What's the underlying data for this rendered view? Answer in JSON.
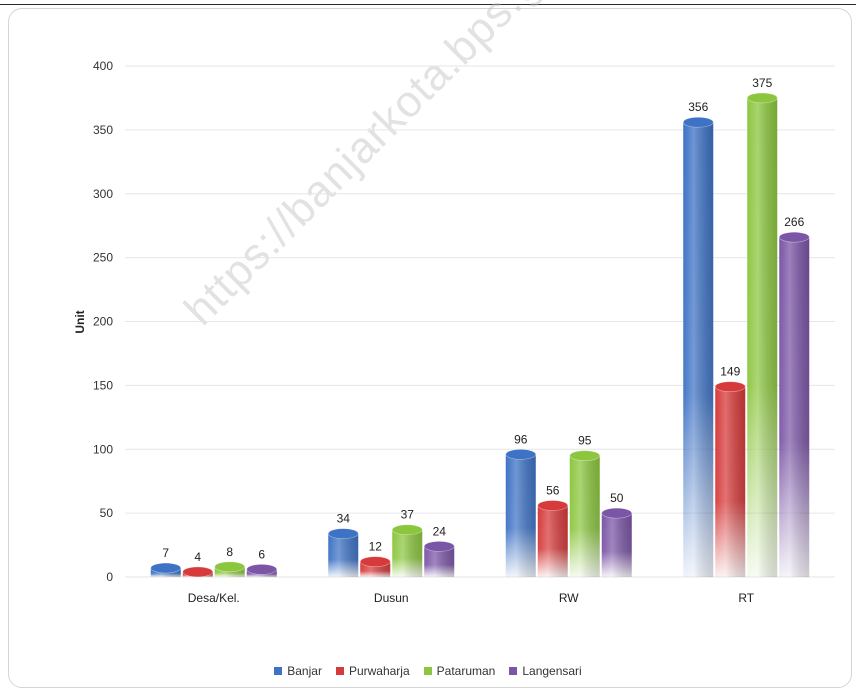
{
  "colors": {
    "Banjar": "#3d72c4",
    "Purwaharja": "#d63a3a",
    "Pataruman": "#8cc63f",
    "Langensari": "#7b55a6"
  },
  "watermark": "https://banjarkota.bps.go.id",
  "chart_data": {
    "type": "bar",
    "title": "",
    "xlabel": "",
    "ylabel": "Unit",
    "ylim": [
      0,
      400
    ],
    "yticks": [
      "0",
      "50",
      "100",
      "150",
      "200",
      "250",
      "300",
      "350",
      "400"
    ],
    "categories": [
      "Desa/Kel.",
      "Dusun",
      "RW",
      "RT"
    ],
    "series": [
      {
        "name": "Banjar",
        "values": [
          7,
          34,
          96,
          356
        ]
      },
      {
        "name": "Purwaharja",
        "values": [
          4,
          12,
          56,
          149
        ]
      },
      {
        "name": "Pataruman",
        "values": [
          8,
          37,
          95,
          375
        ]
      },
      {
        "name": "Langensari",
        "values": [
          6,
          24,
          50,
          266
        ]
      }
    ],
    "grid": true,
    "legend_position": "bottom"
  }
}
